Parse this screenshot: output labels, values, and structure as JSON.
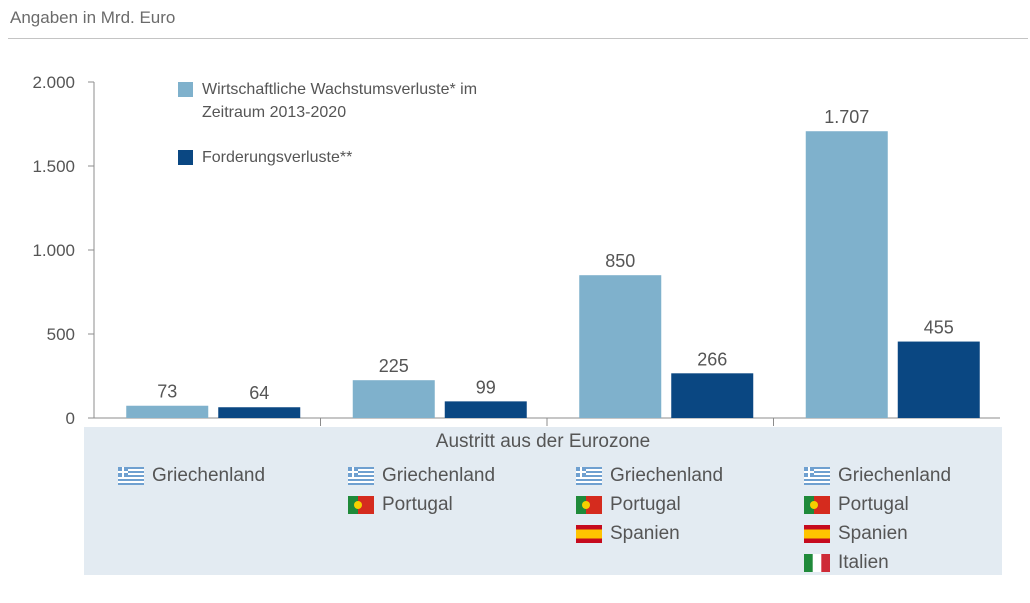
{
  "unit_label": "Angaben in Mrd. Euro",
  "colors": {
    "light": "#7fb1cc",
    "dark": "#0a4782",
    "panel": "#e3ebf2",
    "axis": "#8c8c8c",
    "text": "#555555"
  },
  "chart_data": {
    "type": "bar",
    "title": "",
    "xlabel": "Austritt aus der Eurozone",
    "ylabel": "Angaben in Mrd. Euro",
    "ylim": [
      0,
      2000
    ],
    "yticks": [
      0,
      500,
      1000,
      1500,
      2000
    ],
    "ytick_labels": [
      "0",
      "500",
      "1.000",
      "1.500",
      "2.000"
    ],
    "legend_position": "top-left",
    "categories": [
      "Griechenland",
      "Griechenland, Portugal",
      "Griechenland, Portugal, Spanien",
      "Griechenland, Portugal, Spanien, Italien"
    ],
    "series": [
      {
        "name": "Wirtschaftliche Wachstumsverluste* im Zeitraum 2013-2020",
        "color": "#7fb1cc",
        "values": [
          73,
          225,
          850,
          1707
        ],
        "labels": [
          "73",
          "225",
          "850",
          "1.707"
        ]
      },
      {
        "name": "Forderungsverluste**",
        "color": "#0a4782",
        "values": [
          64,
          99,
          266,
          455
        ],
        "labels": [
          "64",
          "99",
          "266",
          "455"
        ]
      }
    ]
  },
  "legend": {
    "line1": "Wirtschaftliche Wachstumsverluste* im",
    "line2": "Zeitraum 2013-2020",
    "item2": "Forderungsverluste**"
  },
  "category_panel": {
    "title": "Austritt aus der Eurozone",
    "groups": [
      [
        {
          "country": "Griechenland",
          "flag": "greece-flag-icon"
        }
      ],
      [
        {
          "country": "Griechenland",
          "flag": "greece-flag-icon"
        },
        {
          "country": "Portugal",
          "flag": "portugal-flag-icon"
        }
      ],
      [
        {
          "country": "Griechenland",
          "flag": "greece-flag-icon"
        },
        {
          "country": "Portugal",
          "flag": "portugal-flag-icon"
        },
        {
          "country": "Spanien",
          "flag": "spain-flag-icon"
        }
      ],
      [
        {
          "country": "Griechenland",
          "flag": "greece-flag-icon"
        },
        {
          "country": "Portugal",
          "flag": "portugal-flag-icon"
        },
        {
          "country": "Spanien",
          "flag": "spain-flag-icon"
        },
        {
          "country": "Italien",
          "flag": "italy-flag-icon"
        }
      ]
    ]
  }
}
